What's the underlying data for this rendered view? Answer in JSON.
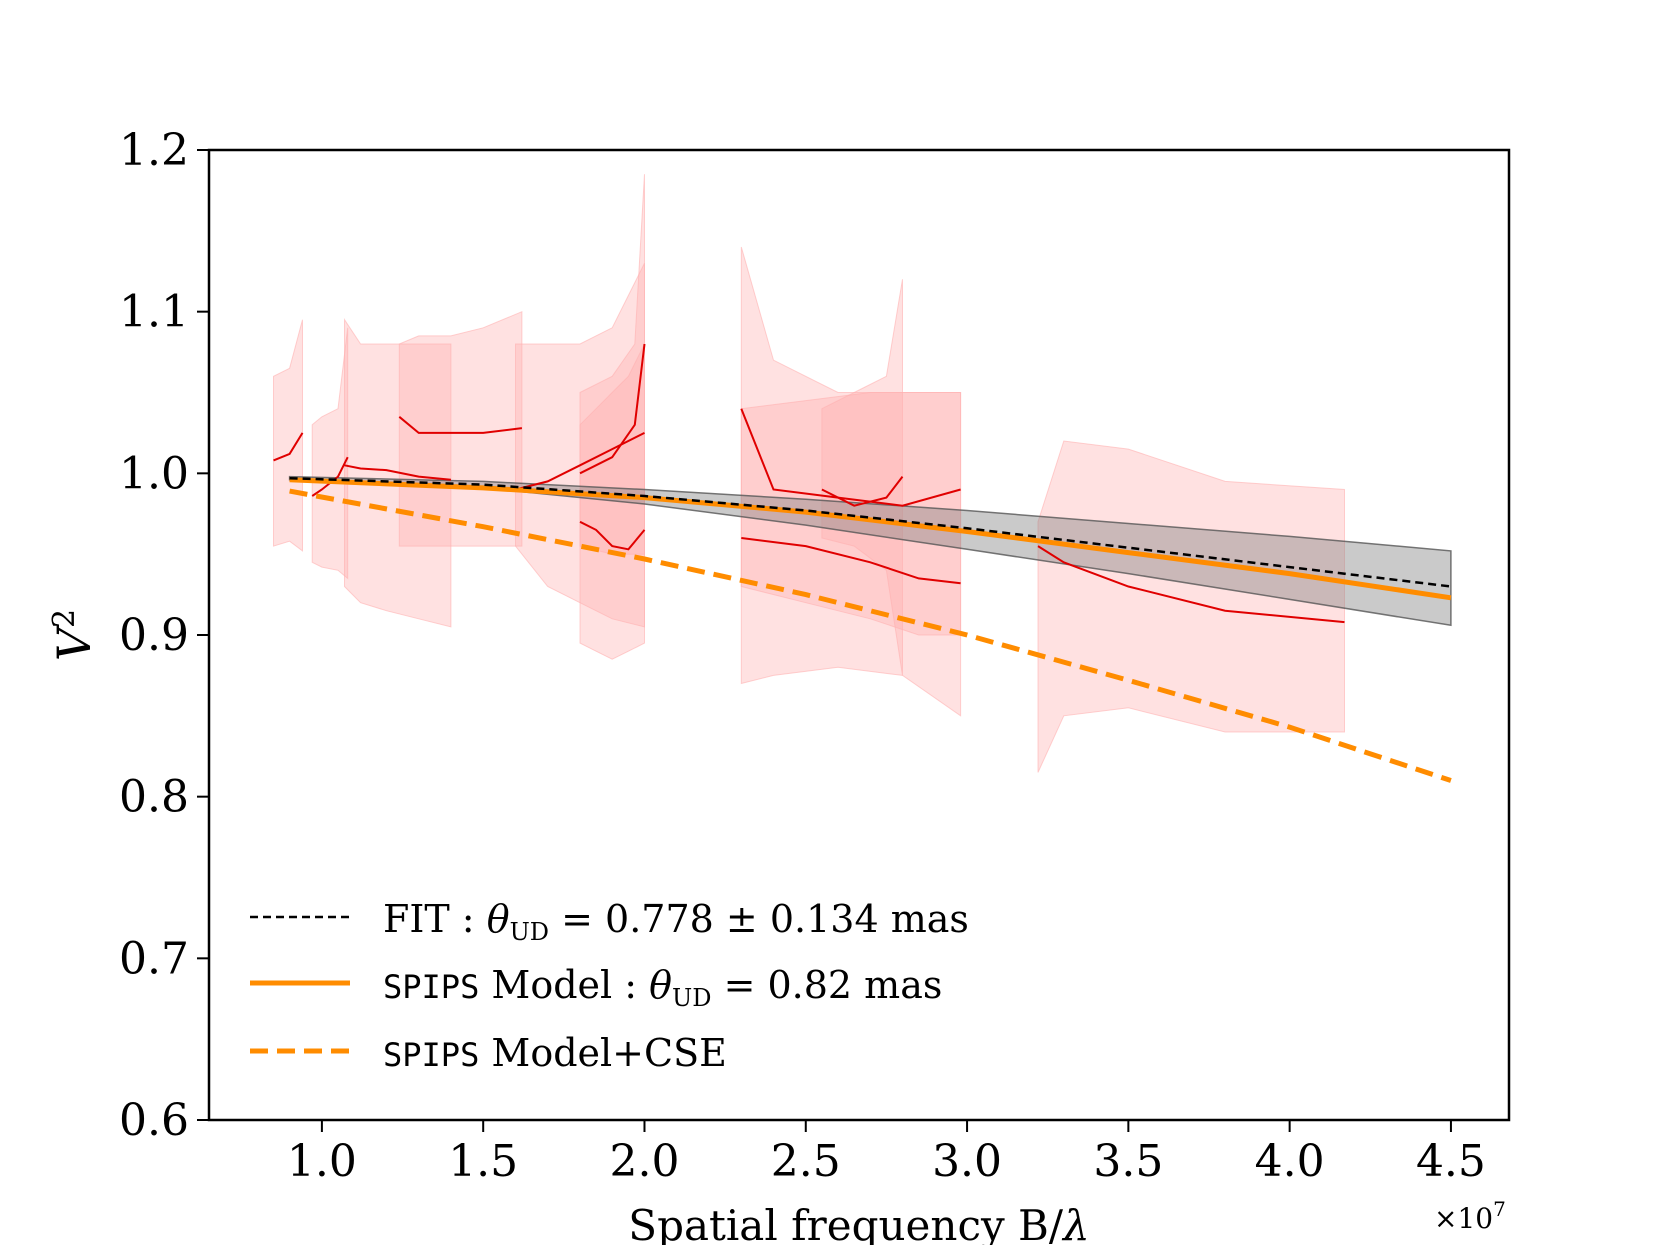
{
  "chart_data": {
    "type": "line",
    "title": "",
    "xlabel_prefix": "Spatial frequency B/",
    "xlabel_symbol": "λ",
    "ylabel_base": "V",
    "ylabel_sup": "2",
    "x_scale_label": "×10",
    "x_scale_exp": "7",
    "xlim": [
      0.65,
      4.68
    ],
    "ylim": [
      0.6,
      1.2
    ],
    "xticks": [
      1.0,
      1.5,
      2.0,
      2.5,
      3.0,
      3.5,
      4.0,
      4.5
    ],
    "xtick_labels": [
      "1.0",
      "1.5",
      "2.0",
      "2.5",
      "3.0",
      "3.5",
      "4.0",
      "4.5"
    ],
    "yticks": [
      0.6,
      0.7,
      0.8,
      0.9,
      1.0,
      1.1,
      1.2
    ],
    "ytick_labels": [
      "0.6",
      "0.7",
      "0.8",
      "0.9",
      "1.0",
      "1.1",
      "1.2"
    ],
    "colors": {
      "fit": "#000000",
      "model": "#ff8c00",
      "model_cse": "#ff8c00",
      "obs": "#e00000",
      "obs_band": "#ffb0b0",
      "fit_band": "#808080"
    },
    "fit": {
      "name": "FIT",
      "x": [
        0.9,
        1.5,
        2.0,
        2.5,
        3.0,
        3.5,
        4.0,
        4.5
      ],
      "y": [
        0.997,
        0.993,
        0.986,
        0.977,
        0.966,
        0.954,
        0.942,
        0.93
      ]
    },
    "fit_band": {
      "x": [
        0.9,
        1.5,
        2.0,
        2.5,
        3.0,
        3.5,
        4.0,
        4.5
      ],
      "lower": [
        0.996,
        0.991,
        0.981,
        0.968,
        0.953,
        0.938,
        0.922,
        0.906
      ],
      "upper": [
        0.998,
        0.995,
        0.99,
        0.984,
        0.977,
        0.969,
        0.961,
        0.952
      ]
    },
    "model": {
      "name": "SPIPS Model",
      "x": [
        0.9,
        1.5,
        2.0,
        2.5,
        3.0,
        3.5,
        4.0,
        4.5
      ],
      "y": [
        0.996,
        0.991,
        0.985,
        0.976,
        0.964,
        0.951,
        0.938,
        0.923
      ]
    },
    "model_cse": {
      "name": "SPIPS Model+CSE",
      "x": [
        0.9,
        1.5,
        2.0,
        2.5,
        3.0,
        3.5,
        4.0,
        4.5
      ],
      "y": [
        0.989,
        0.967,
        0.947,
        0.925,
        0.9,
        0.872,
        0.843,
        0.81
      ]
    },
    "observations": [
      {
        "x": [
          0.85,
          0.9,
          0.94
        ],
        "y": [
          1.008,
          1.012,
          1.025
        ],
        "lower": [
          0.955,
          0.958,
          0.952
        ],
        "upper": [
          1.06,
          1.065,
          1.095
        ]
      },
      {
        "x": [
          0.97,
          1.0,
          1.05,
          1.08
        ],
        "y": [
          0.986,
          0.99,
          0.998,
          1.01
        ],
        "lower": [
          0.945,
          0.942,
          0.94,
          0.935
        ],
        "upper": [
          1.03,
          1.035,
          1.04,
          1.09
        ]
      },
      {
        "x": [
          1.07,
          1.12,
          1.2,
          1.3,
          1.4
        ],
        "y": [
          1.005,
          1.003,
          1.002,
          0.998,
          0.996
        ],
        "lower": [
          0.93,
          0.92,
          0.915,
          0.91,
          0.905
        ],
        "upper": [
          1.095,
          1.08,
          1.08,
          1.08,
          1.08
        ]
      },
      {
        "x": [
          1.24,
          1.3,
          1.4,
          1.5,
          1.62
        ],
        "y": [
          1.035,
          1.025,
          1.025,
          1.025,
          1.028
        ],
        "lower": [
          0.955,
          0.955,
          0.955,
          0.955,
          0.955
        ],
        "upper": [
          1.08,
          1.085,
          1.085,
          1.09,
          1.1
        ]
      },
      {
        "x": [
          1.6,
          1.7,
          1.8,
          1.9,
          2.0
        ],
        "y": [
          0.99,
          0.995,
          1.005,
          1.015,
          1.025
        ],
        "lower": [
          0.955,
          0.93,
          0.92,
          0.91,
          0.905
        ],
        "upper": [
          1.08,
          1.08,
          1.08,
          1.09,
          1.13
        ]
      },
      {
        "x": [
          1.8,
          1.85,
          1.9,
          1.95,
          2.0
        ],
        "y": [
          0.97,
          0.965,
          0.955,
          0.953,
          0.965
        ],
        "lower": [
          0.895,
          0.89,
          0.885,
          0.89,
          0.895
        ],
        "upper": [
          1.03,
          1.04,
          1.05,
          1.06,
          1.08
        ]
      },
      {
        "x": [
          1.8,
          1.9,
          1.97,
          2.0
        ],
        "y": [
          1.0,
          1.01,
          1.03,
          1.08
        ],
        "lower": [
          0.955,
          0.95,
          0.95,
          0.95
        ],
        "upper": [
          1.05,
          1.06,
          1.08,
          1.185
        ]
      },
      {
        "x": [
          2.3,
          2.4,
          2.6,
          2.8,
          2.98
        ],
        "y": [
          1.04,
          0.99,
          0.985,
          0.98,
          0.99
        ],
        "lower": [
          0.87,
          0.875,
          0.88,
          0.875,
          0.85
        ],
        "upper": [
          1.14,
          1.07,
          1.05,
          1.05,
          1.05
        ]
      },
      {
        "x": [
          2.3,
          2.5,
          2.7,
          2.85,
          2.98
        ],
        "y": [
          0.96,
          0.955,
          0.945,
          0.935,
          0.932
        ],
        "lower": [
          0.93,
          0.92,
          0.91,
          0.9,
          0.9
        ],
        "upper": [
          1.04,
          1.045,
          1.05,
          1.05,
          1.05
        ]
      },
      {
        "x": [
          2.55,
          2.65,
          2.75,
          2.8
        ],
        "y": [
          0.99,
          0.98,
          0.985,
          0.998
        ],
        "lower": [
          0.96,
          0.955,
          0.94,
          0.875
        ],
        "upper": [
          1.04,
          1.05,
          1.06,
          1.12
        ]
      },
      {
        "x": [
          3.22,
          3.3,
          3.5,
          3.8,
          4.17
        ],
        "y": [
          0.955,
          0.945,
          0.93,
          0.915,
          0.908
        ],
        "lower": [
          0.815,
          0.85,
          0.855,
          0.84,
          0.84
        ],
        "upper": [
          0.97,
          1.02,
          1.015,
          0.995,
          0.99
        ]
      }
    ],
    "legend": {
      "position": "lower-left",
      "entries": [
        {
          "label_prefix": "FIT : ",
          "theta": "θ",
          "theta_sub": "UD",
          "value_text": " = 0.778 ± 0.134 mas",
          "style": "dashed-black"
        },
        {
          "label_mono": "SPIPS",
          "label_rest": " Model : ",
          "theta": "θ",
          "theta_sub": "UD",
          "value_text": " = 0.82 mas",
          "style": "solid-orange"
        },
        {
          "label_mono": "SPIPS",
          "label_rest": " Model+CSE",
          "style": "dashed-orange"
        }
      ]
    }
  }
}
